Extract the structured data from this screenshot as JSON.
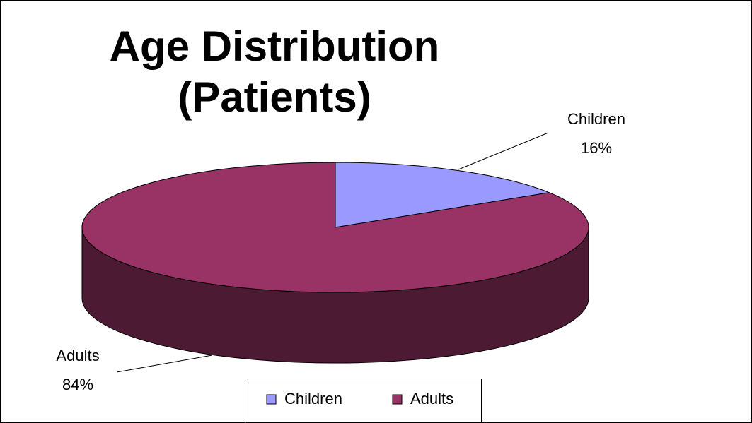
{
  "chart_data": {
    "type": "pie",
    "title": "Age Distribution (Patients)",
    "categories": [
      "Children",
      "Adults"
    ],
    "values": [
      16,
      84
    ],
    "value_labels": [
      "16%",
      "84%"
    ],
    "colors": [
      "#9999ff",
      "#993366"
    ],
    "legend": "bottom"
  }
}
